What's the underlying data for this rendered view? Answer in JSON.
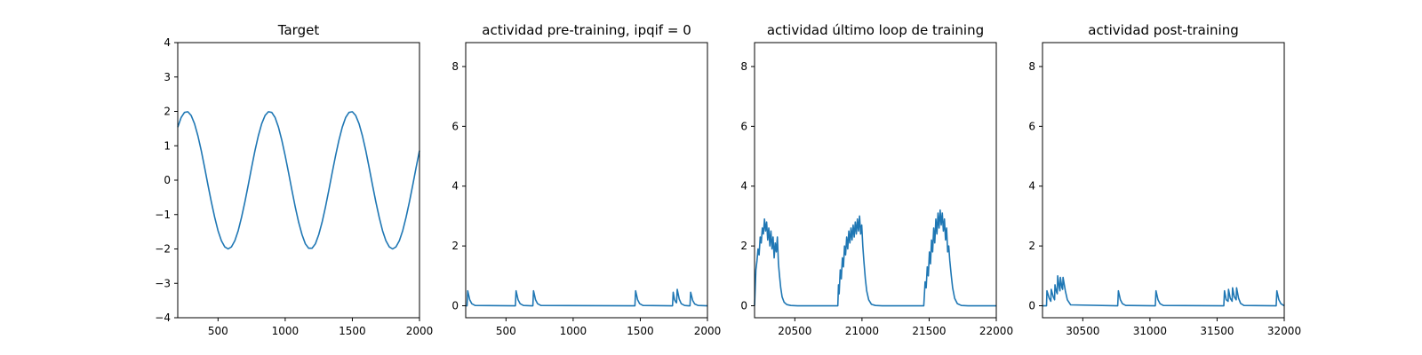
{
  "chart_data": [
    {
      "type": "line",
      "title": "Target",
      "xlim": [
        200,
        2000
      ],
      "ylim": [
        -4,
        4
      ],
      "xticks": [
        500,
        1000,
        1500,
        2000
      ],
      "yticks": [
        -4,
        -3,
        -2,
        -1,
        0,
        1,
        2,
        3,
        4
      ],
      "series": [
        {
          "color": "#1f77b4",
          "x": [
            200,
            225,
            250,
            275,
            300,
            325,
            350,
            375,
            400,
            425,
            450,
            475,
            500,
            525,
            550,
            575,
            600,
            625,
            650,
            675,
            700,
            725,
            750,
            775,
            800,
            825,
            850,
            875,
            900,
            925,
            950,
            975,
            1000,
            1025,
            1050,
            1075,
            1100,
            1125,
            1150,
            1175,
            1200,
            1225,
            1250,
            1275,
            1300,
            1325,
            1350,
            1375,
            1400,
            1425,
            1450,
            1475,
            1500,
            1525,
            1550,
            1575,
            1600,
            1625,
            1650,
            1675,
            1700,
            1725,
            1750,
            1775,
            1800,
            1825,
            1850,
            1875,
            1900,
            1925,
            1950,
            1975,
            2000
          ],
          "y": [
            1.54,
            1.82,
            1.97,
            1.99,
            1.88,
            1.64,
            1.29,
            0.86,
            0.37,
            -0.14,
            -0.63,
            -1.08,
            -1.47,
            -1.76,
            -1.94,
            -2.0,
            -1.94,
            -1.76,
            -1.47,
            -1.08,
            -0.63,
            -0.14,
            0.37,
            0.86,
            1.29,
            1.64,
            1.88,
            1.99,
            1.97,
            1.82,
            1.54,
            1.16,
            0.71,
            0.22,
            -0.29,
            -0.78,
            -1.22,
            -1.58,
            -1.85,
            -1.98,
            -1.98,
            -1.85,
            -1.58,
            -1.22,
            -0.78,
            -0.29,
            0.22,
            0.71,
            1.16,
            1.54,
            1.82,
            1.97,
            1.99,
            1.88,
            1.64,
            1.29,
            0.86,
            0.37,
            -0.14,
            -0.63,
            -1.08,
            -1.47,
            -1.76,
            -1.94,
            -2.0,
            -1.94,
            -1.76,
            -1.47,
            -1.08,
            -0.63,
            -0.14,
            0.37,
            0.86
          ]
        }
      ]
    },
    {
      "type": "line",
      "title": "actividad pre-training, ipqif = 0",
      "xlim": [
        200,
        2000
      ],
      "ylim": [
        -0.4,
        8.8
      ],
      "xticks": [
        500,
        1000,
        1500,
        2000
      ],
      "yticks": [
        0,
        2,
        4,
        6,
        8
      ],
      "series": [
        {
          "color": "#1f77b4",
          "x": [
            200,
            210,
            215,
            230,
            245,
            270,
            560,
            570,
            575,
            590,
            605,
            630,
            690,
            700,
            705,
            720,
            735,
            760,
            1450,
            1460,
            1465,
            1480,
            1495,
            1520,
            1730,
            1740,
            1745,
            1755,
            1765,
            1770,
            1775,
            1790,
            1805,
            1830,
            1860,
            1870,
            1875,
            1890,
            1905,
            1930,
            2000
          ],
          "y": [
            0,
            0,
            0.5,
            0.2,
            0.07,
            0.01,
            0,
            0,
            0.5,
            0.2,
            0.07,
            0.01,
            0,
            0,
            0.5,
            0.2,
            0.07,
            0.01,
            0,
            0,
            0.5,
            0.2,
            0.07,
            0.01,
            0,
            0,
            0.45,
            0.2,
            0.12,
            0.1,
            0.55,
            0.22,
            0.07,
            0.01,
            0,
            0,
            0.45,
            0.18,
            0.06,
            0.01,
            0
          ]
        }
      ]
    },
    {
      "type": "line",
      "title": "actividad último loop de training",
      "xlim": [
        20200,
        22000
      ],
      "ylim": [
        -0.4,
        8.8
      ],
      "xticks": [
        20500,
        21000,
        21500,
        22000
      ],
      "yticks": [
        0,
        2,
        4,
        6,
        8
      ],
      "series": [
        {
          "color": "#1f77b4",
          "x": [
            20200,
            20205,
            20210,
            20218,
            20226,
            20234,
            20242,
            20250,
            20258,
            20266,
            20274,
            20282,
            20290,
            20298,
            20306,
            20314,
            20322,
            20330,
            20338,
            20346,
            20354,
            20362,
            20370,
            20378,
            20386,
            20395,
            20405,
            20420,
            20440,
            20470,
            20520,
            20820,
            20825,
            20830,
            20838,
            20846,
            20854,
            20862,
            20870,
            20878,
            20886,
            20894,
            20902,
            20910,
            20918,
            20926,
            20934,
            20942,
            20950,
            20958,
            20966,
            20974,
            20982,
            20990,
            20998,
            21006,
            21014,
            21025,
            21035,
            21050,
            21070,
            21100,
            21150,
            21460,
            21465,
            21470,
            21478,
            21486,
            21494,
            21502,
            21510,
            21518,
            21526,
            21534,
            21542,
            21550,
            21558,
            21566,
            21574,
            21582,
            21590,
            21598,
            21606,
            21614,
            21622,
            21630,
            21638,
            21646,
            21654,
            21665,
            21675,
            21690,
            21710,
            21740,
            21790,
            22000
          ],
          "y": [
            0,
            0.6,
            1.2,
            1.5,
            1.9,
            1.7,
            2.3,
            2.1,
            2.6,
            2.4,
            2.9,
            2.5,
            2.8,
            2.2,
            2.6,
            2.0,
            2.5,
            1.9,
            2.3,
            1.6,
            2.1,
            1.8,
            2.3,
            1.4,
            1.0,
            0.6,
            0.3,
            0.12,
            0.04,
            0.01,
            0,
            0,
            0.7,
            0.4,
            1.2,
            0.9,
            1.6,
            1.3,
            2.0,
            1.7,
            2.3,
            1.9,
            2.5,
            2.1,
            2.6,
            2.2,
            2.7,
            2.3,
            2.8,
            2.4,
            2.9,
            2.5,
            3.0,
            2.4,
            2.7,
            2.0,
            1.5,
            0.9,
            0.5,
            0.2,
            0.05,
            0.01,
            0,
            0,
            0.4,
            0.8,
            0.6,
            1.3,
            1.0,
            1.8,
            1.4,
            2.2,
            1.8,
            2.6,
            2.1,
            2.9,
            2.4,
            3.1,
            2.6,
            3.2,
            2.7,
            3.1,
            2.5,
            2.9,
            2.2,
            2.6,
            1.8,
            2.0,
            1.5,
            1.0,
            0.6,
            0.25,
            0.07,
            0.01,
            0,
            0
          ]
        }
      ]
    },
    {
      "type": "line",
      "title": "actividad post-training",
      "xlim": [
        30200,
        32000
      ],
      "ylim": [
        -0.4,
        8.8
      ],
      "xticks": [
        30500,
        31000,
        31500,
        32000
      ],
      "yticks": [
        0,
        2,
        4,
        6,
        8
      ],
      "series": [
        {
          "color": "#1f77b4",
          "x": [
            30200,
            30230,
            30233,
            30250,
            30262,
            30265,
            30280,
            30290,
            30293,
            30305,
            30310,
            30313,
            30325,
            30330,
            30333,
            30345,
            30350,
            30353,
            30370,
            30385,
            30410,
            30760,
            30765,
            30780,
            30795,
            30820,
            31040,
            31045,
            31060,
            31075,
            31100,
            31550,
            31555,
            31568,
            31582,
            31585,
            31598,
            31612,
            31615,
            31628,
            31642,
            31645,
            31660,
            31675,
            31700,
            31940,
            31945,
            31960,
            31975,
            32000
          ],
          "y": [
            0,
            0,
            0.5,
            0.25,
            0.15,
            0.55,
            0.3,
            0.2,
            0.7,
            0.45,
            0.4,
            1.0,
            0.6,
            0.5,
            0.95,
            0.6,
            0.55,
            0.95,
            0.5,
            0.2,
            0.03,
            0,
            0.5,
            0.2,
            0.07,
            0.01,
            0,
            0.5,
            0.2,
            0.07,
            0.01,
            0,
            0.5,
            0.2,
            0.15,
            0.55,
            0.25,
            0.15,
            0.6,
            0.3,
            0.2,
            0.6,
            0.25,
            0.08,
            0.01,
            0,
            0.5,
            0.2,
            0.07,
            0
          ]
        }
      ]
    }
  ]
}
